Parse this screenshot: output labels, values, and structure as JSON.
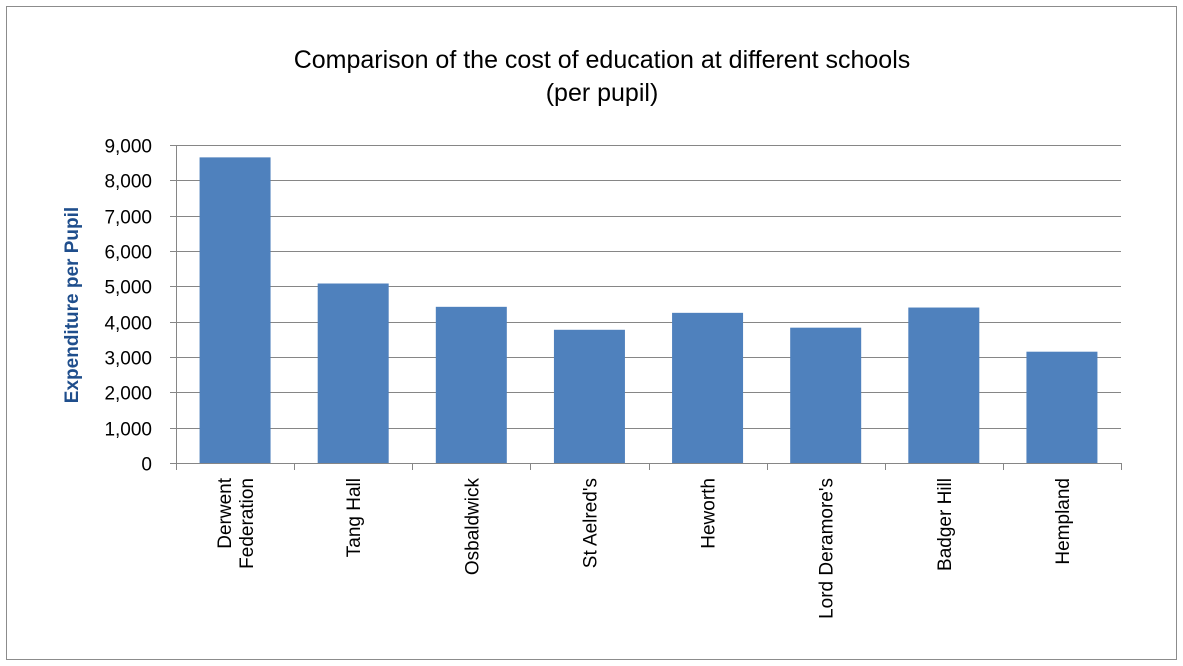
{
  "chart_data": {
    "type": "bar",
    "title": [
      "Comparison of the cost of education at different schools",
      "(per pupil)"
    ],
    "xlabel": "",
    "ylabel": "Expenditure per Pupil",
    "categories": [
      [
        "Derwent",
        "Federation"
      ],
      [
        "Tang Hall"
      ],
      [
        "Osbaldwick"
      ],
      [
        "St Aelred's"
      ],
      [
        "Heworth"
      ],
      [
        "Lord Deramore's"
      ],
      [
        "Badger Hill"
      ],
      [
        "Hempland"
      ]
    ],
    "values": [
      8650,
      5080,
      4420,
      3770,
      4250,
      3830,
      4400,
      3150
    ],
    "ylim": [
      0,
      9000
    ],
    "yticks": [
      0,
      1000,
      2000,
      3000,
      4000,
      5000,
      6000,
      7000,
      8000,
      9000
    ],
    "ytick_labels": [
      "0",
      "1,000",
      "2,000",
      "3,000",
      "4,000",
      "5,000",
      "6,000",
      "7,000",
      "8,000",
      "9,000"
    ],
    "grid": true,
    "legend": "none",
    "colors": {
      "bar": "#4f81bd",
      "grid": "#868686",
      "axis": "#868686",
      "ylabel": "#1f4e8c"
    }
  }
}
